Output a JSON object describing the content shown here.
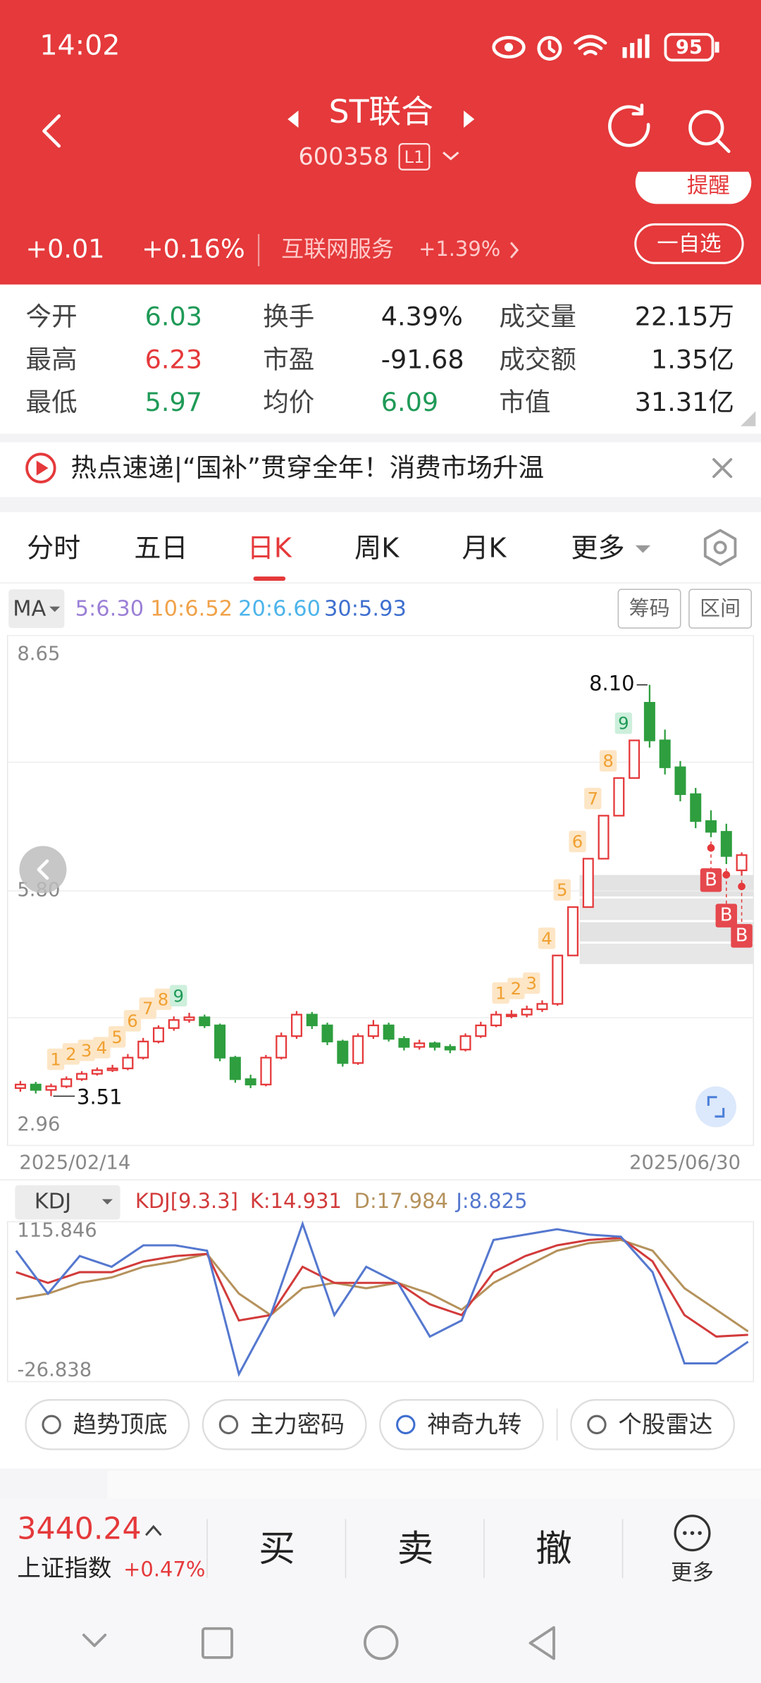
{
  "status": {
    "time": "14:02",
    "battery": "95"
  },
  "header": {
    "title": "ST联合",
    "code": "600358",
    "level": "L1",
    "change": "+0.01",
    "change_pct": "+0.16%",
    "sector": "互联网服务",
    "sector_pct": "+1.39%",
    "remind": "提醒",
    "watch": "一自选"
  },
  "stats": {
    "rows": [
      [
        "今开",
        "6.03",
        "换手",
        "4.39%",
        "成交量",
        "22.15万"
      ],
      [
        "最高",
        "6.23",
        "市盈",
        "-91.68",
        "成交额",
        "1.35亿"
      ],
      [
        "最低",
        "5.97",
        "均价",
        "6.09",
        "市值",
        "31.31亿"
      ]
    ]
  },
  "news": "热点速递|“国补”贯穿全年！消费市场升温",
  "tabs": {
    "items": [
      "分时",
      "五日",
      "日K",
      "周K",
      "月K",
      "更多"
    ],
    "active": 2
  },
  "ma": {
    "label": "MA",
    "items": [
      {
        "text": "5:6.30",
        "color": "#9b80d6"
      },
      {
        "text": "10:6.52",
        "color": "#f0a24a"
      },
      {
        "text": "20:6.60",
        "color": "#4db4ea"
      },
      {
        "text": "30:5.93",
        "color": "#3e6fcf"
      }
    ],
    "buttons": [
      "筹码",
      "区间"
    ]
  },
  "kline": {
    "ylim": [
      2.96,
      8.65
    ],
    "yticks": [
      8.65,
      {
        "value": 5.8,
        "label": "5.80"
      },
      2.96
    ],
    "dates": [
      "2025/02/14",
      "2025/06/30"
    ],
    "high_label": "8.10",
    "low_label": "3.51",
    "up_color": "#e5393b",
    "down_color": "#2e9e3f",
    "candles": {
      "open": [
        3.6,
        3.64,
        3.58,
        3.62,
        3.7,
        3.76,
        3.8,
        3.82,
        3.94,
        4.12,
        4.27,
        4.36,
        4.39,
        4.3,
        3.94,
        3.7,
        3.64,
        3.94,
        4.18,
        4.42,
        4.3,
        4.12,
        3.88,
        4.18,
        4.3,
        4.15,
        4.06,
        4.1,
        4.06,
        4.03,
        4.18,
        4.3,
        4.42,
        4.42,
        4.48,
        4.54,
        5.08,
        5.62,
        6.16,
        6.64,
        7.06,
        7.9,
        7.48,
        7.18,
        6.88,
        6.58,
        6.46,
        6.03
      ],
      "close": [
        3.64,
        3.58,
        3.62,
        3.7,
        3.76,
        3.8,
        3.82,
        3.94,
        4.12,
        4.27,
        4.36,
        4.39,
        4.3,
        3.94,
        3.7,
        3.64,
        3.94,
        4.18,
        4.42,
        4.3,
        4.12,
        3.88,
        4.18,
        4.3,
        4.15,
        4.06,
        4.1,
        4.06,
        4.03,
        4.18,
        4.3,
        4.42,
        4.42,
        4.48,
        4.54,
        5.08,
        5.62,
        6.16,
        6.64,
        7.06,
        7.48,
        7.48,
        7.18,
        6.88,
        6.58,
        6.46,
        6.19,
        6.2
      ],
      "high": [
        3.68,
        3.67,
        3.65,
        3.73,
        3.79,
        3.83,
        3.86,
        3.98,
        4.16,
        4.3,
        4.4,
        4.44,
        4.42,
        4.32,
        3.96,
        3.75,
        3.97,
        4.22,
        4.46,
        4.45,
        4.33,
        4.14,
        4.21,
        4.36,
        4.33,
        4.18,
        4.14,
        4.12,
        4.09,
        4.21,
        4.34,
        4.46,
        4.47,
        4.52,
        4.58,
        5.08,
        5.62,
        6.16,
        6.64,
        7.06,
        7.48,
        8.1,
        7.6,
        7.25,
        6.95,
        6.7,
        6.55,
        6.23
      ],
      "low": [
        3.56,
        3.54,
        3.51,
        3.6,
        3.68,
        3.74,
        3.78,
        3.8,
        3.92,
        4.1,
        4.24,
        4.33,
        4.27,
        3.9,
        3.66,
        3.6,
        3.62,
        3.92,
        4.15,
        4.26,
        4.08,
        3.84,
        3.86,
        4.15,
        4.12,
        4.02,
        4.03,
        4.02,
        3.99,
        4.01,
        4.16,
        4.28,
        4.38,
        4.39,
        4.45,
        4.52,
        5.08,
        5.62,
        6.16,
        6.64,
        7.06,
        7.4,
        7.1,
        6.8,
        6.5,
        6.4,
        6.1,
        5.97
      ],
      "nine_turn": [
        null,
        null,
        null,
        "1",
        "2",
        "3",
        "4",
        "5",
        "6",
        "7",
        "8",
        "9",
        null,
        null,
        null,
        null,
        null,
        null,
        null,
        null,
        null,
        null,
        null,
        null,
        null,
        null,
        null,
        null,
        null,
        null,
        null,
        null,
        "1",
        "2",
        "3",
        "4",
        "5",
        "6",
        "7",
        "8",
        "9",
        null,
        null,
        null,
        null,
        null,
        null,
        null
      ],
      "signals": [
        null,
        null,
        null,
        null,
        null,
        null,
        null,
        null,
        null,
        null,
        null,
        null,
        null,
        null,
        null,
        null,
        null,
        null,
        null,
        null,
        null,
        null,
        null,
        null,
        null,
        null,
        null,
        null,
        null,
        null,
        null,
        null,
        null,
        null,
        null,
        null,
        null,
        null,
        null,
        null,
        null,
        null,
        null,
        null,
        null,
        "B",
        "B",
        "B"
      ]
    }
  },
  "kdj": {
    "label": "KDJ",
    "params": "KDJ[9.3.3]",
    "k_text": "K:14.931",
    "d_text": "D:17.984",
    "j_text": "J:8.825",
    "ylim": [
      -26.838,
      115.846
    ],
    "yticks": [
      115.846,
      -26.838
    ],
    "k": [
      70.8,
      61.3,
      70.8,
      70.8,
      80.4,
      85.2,
      87.1,
      27.7,
      32.5,
      75.6,
      61.3,
      61.3,
      61.3,
      42.1,
      32.5,
      70.8,
      85.2,
      94.8,
      99.6,
      101.5,
      80.4,
      32.5,
      13.4,
      14.931
    ],
    "d": [
      46.9,
      51.7,
      61.3,
      66.1,
      75.6,
      80.4,
      87.1,
      51.7,
      32.5,
      56.5,
      61.3,
      56.5,
      61.3,
      51.7,
      37.3,
      61.3,
      75.6,
      90.0,
      96.7,
      99.6,
      90.0,
      56.5,
      37.3,
      17.984
    ],
    "j": [
      90.0,
      51.7,
      85.2,
      75.6,
      94.8,
      94.8,
      90.0,
      -20.1,
      32.5,
      113.9,
      32.5,
      75.6,
      61.3,
      13.4,
      27.7,
      99.6,
      104.4,
      109.1,
      104.4,
      102.4,
      70.8,
      -10.6,
      -10.6,
      8.825
    ],
    "k_color": "#d23b3b",
    "d_color": "#b5925c",
    "j_color": "#5578cf"
  },
  "tools": [
    "趋势顶底",
    "主力密码",
    "神奇九转",
    "个股雷达"
  ],
  "bottom": {
    "index_value": "3440.24",
    "index_name": "上证指数",
    "index_pct": "+0.47%",
    "buttons": [
      "买",
      "卖",
      "撤"
    ],
    "more": "更多"
  }
}
